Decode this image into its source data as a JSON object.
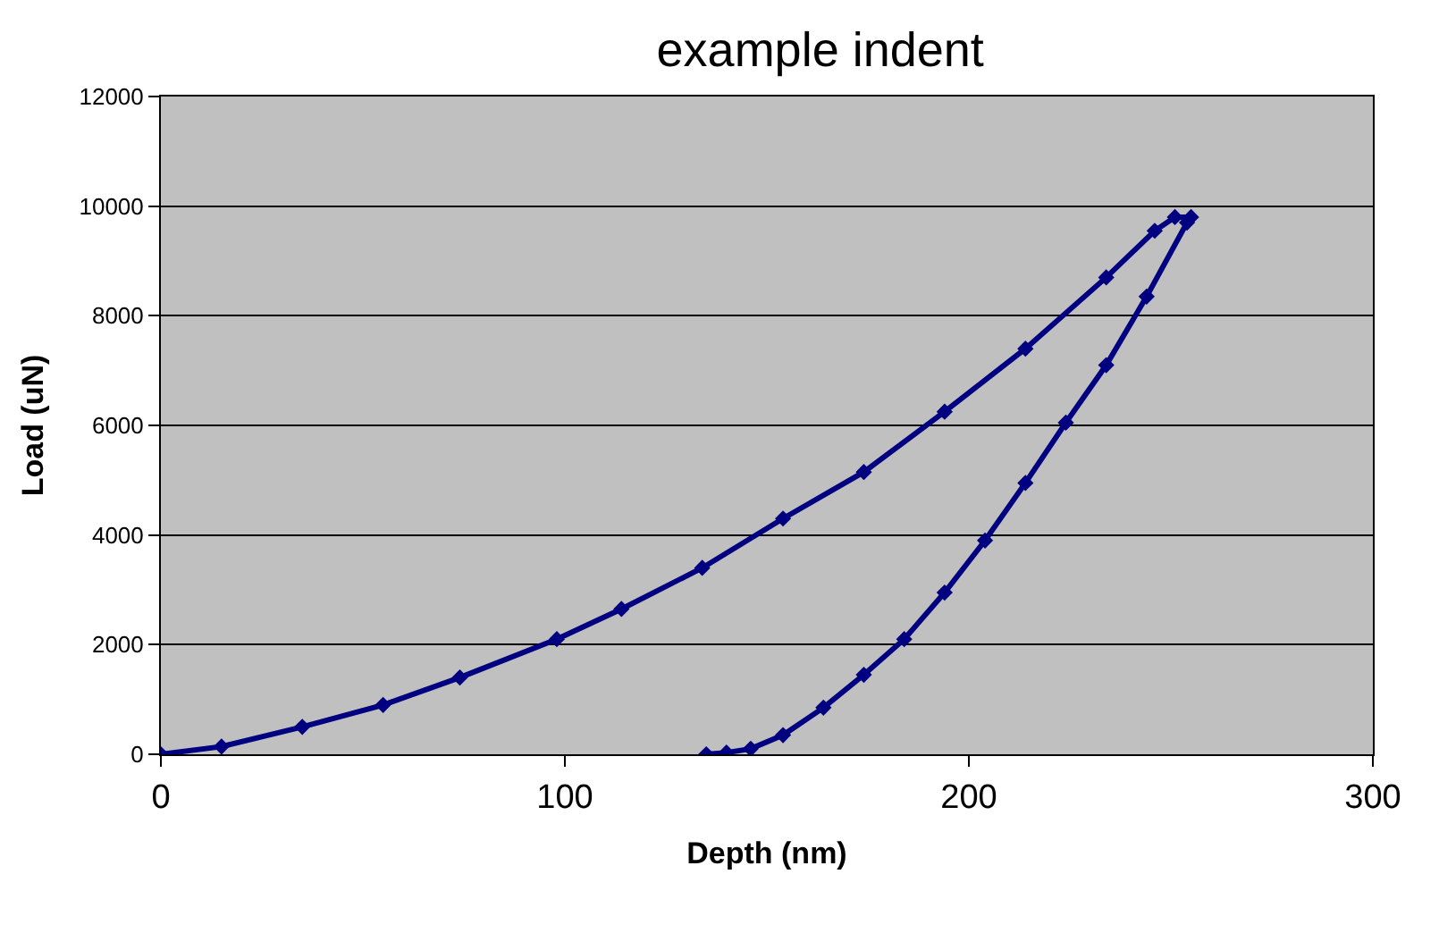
{
  "chart_data": {
    "type": "line",
    "title": "example indent",
    "xlabel": "Depth (nm)",
    "ylabel": "Load (uN)",
    "series": [
      {
        "color": "#000080",
        "x": [
          0,
          15,
          35,
          55,
          74,
          98,
          114,
          134,
          154,
          174,
          194,
          214,
          234,
          246,
          251,
          255,
          254,
          244,
          234,
          224,
          214,
          204,
          194,
          184,
          174,
          164,
          154,
          146,
          140,
          135
        ],
        "values": [
          0,
          140,
          500,
          900,
          1400,
          2100,
          2650,
          3400,
          4300,
          5150,
          6250,
          7400,
          8700,
          9550,
          9800,
          9800,
          9700,
          8350,
          7100,
          6050,
          4950,
          3900,
          2950,
          2100,
          1450,
          850,
          350,
          100,
          30,
          0
        ]
      }
    ],
    "xlim": [
      0,
      300
    ],
    "xticks": [
      0,
      100,
      200,
      300
    ],
    "ylim": [
      0,
      12000
    ],
    "yticks": [
      0,
      2000,
      4000,
      6000,
      8000,
      10000,
      12000
    ],
    "grid": "y",
    "marker": "diamond",
    "line_style": "solid"
  }
}
